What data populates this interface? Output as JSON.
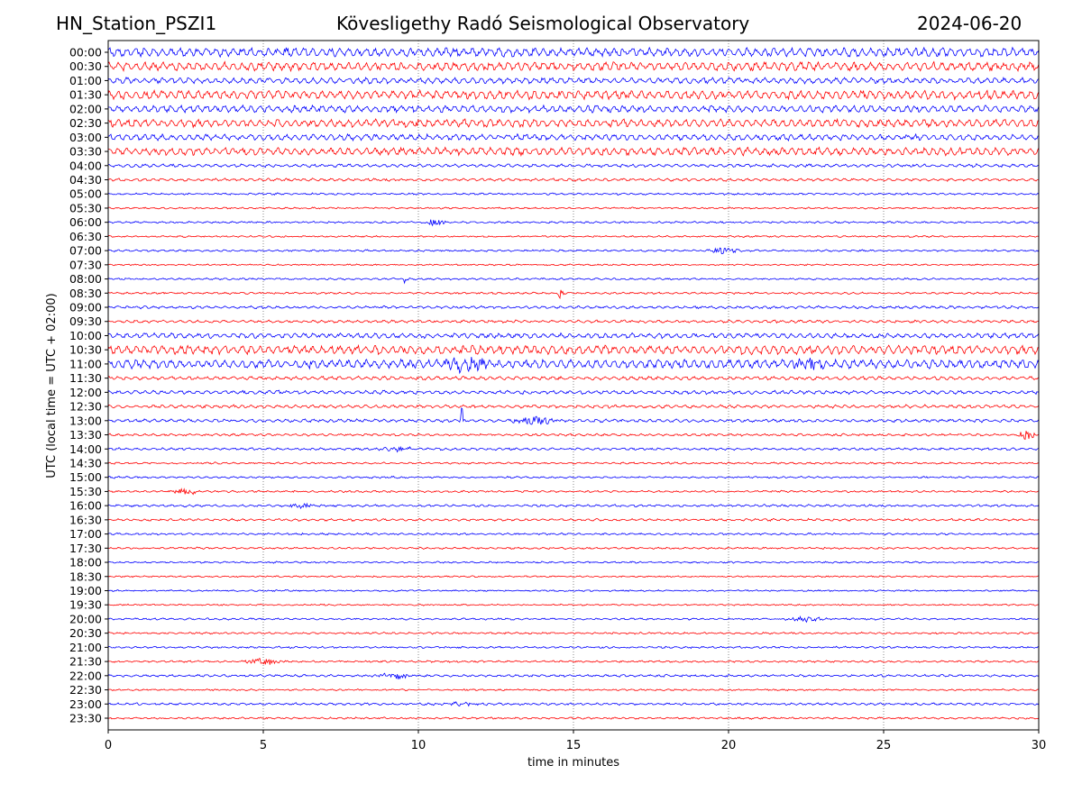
{
  "header": {
    "station": "HN_Station_PSZI1",
    "observatory": "Kövesligethy Radó Seismological Observatory",
    "date": "2024-06-20"
  },
  "chart_data": {
    "type": "line",
    "title": "Kövesligethy Radó Seismological Observatory",
    "xlabel": "time in minutes",
    "ylabel": "UTC (local time = UTC + 02:00)",
    "xlim": [
      0,
      30
    ],
    "xticks": [
      "0",
      "5",
      "10",
      "15",
      "20",
      "25",
      "30"
    ],
    "grid": "vertical dotted at x ticks",
    "colors": [
      "#0000ff",
      "#ff0000"
    ],
    "rows": [
      "00:00",
      "00:30",
      "01:00",
      "01:30",
      "02:00",
      "02:30",
      "03:00",
      "03:30",
      "04:00",
      "04:30",
      "05:00",
      "05:30",
      "06:00",
      "06:30",
      "07:00",
      "07:30",
      "08:00",
      "08:30",
      "09:00",
      "09:30",
      "10:00",
      "10:30",
      "11:00",
      "11:30",
      "12:00",
      "12:30",
      "13:00",
      "13:30",
      "14:00",
      "14:30",
      "15:00",
      "15:30",
      "16:00",
      "16:30",
      "17:00",
      "17:30",
      "18:00",
      "18:30",
      "19:00",
      "19:30",
      "20:00",
      "20:30",
      "21:00",
      "21:30",
      "22:00",
      "22:30",
      "23:00",
      "23:30"
    ],
    "noise_level": [
      0.9,
      0.9,
      0.6,
      0.9,
      0.7,
      0.8,
      0.6,
      0.8,
      0.3,
      0.25,
      0.15,
      0.12,
      0.15,
      0.12,
      0.15,
      0.1,
      0.15,
      0.15,
      0.25,
      0.25,
      0.5,
      0.9,
      0.9,
      0.35,
      0.35,
      0.3,
      0.3,
      0.2,
      0.2,
      0.15,
      0.15,
      0.15,
      0.2,
      0.2,
      0.15,
      0.15,
      0.12,
      0.1,
      0.1,
      0.1,
      0.15,
      0.15,
      0.15,
      0.15,
      0.2,
      0.12,
      0.2,
      0.15
    ],
    "events": [
      {
        "row": "06:00",
        "minute": 10.5,
        "amp": 0.5,
        "dur": 0.5
      },
      {
        "row": "07:00",
        "minute": 19.8,
        "amp": 0.5,
        "dur": 0.8
      },
      {
        "row": "08:00",
        "minute": 9.6,
        "amp": 1.0,
        "dur": 0.1
      },
      {
        "row": "08:30",
        "minute": 14.6,
        "amp": 1.0,
        "dur": 0.15
      },
      {
        "row": "11:00",
        "minute": 11.5,
        "amp": 1.0,
        "dur": 1.0
      },
      {
        "row": "11:00",
        "minute": 22.6,
        "amp": 0.8,
        "dur": 0.8
      },
      {
        "row": "13:00",
        "minute": 11.4,
        "amp": 3.0,
        "dur": 0.05
      },
      {
        "row": "13:00",
        "minute": 13.8,
        "amp": 0.6,
        "dur": 1.0
      },
      {
        "row": "13:30",
        "minute": 29.6,
        "amp": 0.8,
        "dur": 0.4
      },
      {
        "row": "14:00",
        "minute": 9.3,
        "amp": 0.4,
        "dur": 0.8
      },
      {
        "row": "15:30",
        "minute": 2.5,
        "amp": 0.4,
        "dur": 0.8
      },
      {
        "row": "16:00",
        "minute": 6.2,
        "amp": 0.5,
        "dur": 0.5
      },
      {
        "row": "20:00",
        "minute": 22.5,
        "amp": 0.35,
        "dur": 0.8
      },
      {
        "row": "21:30",
        "minute": 5.0,
        "amp": 0.6,
        "dur": 0.8
      },
      {
        "row": "22:00",
        "minute": 9.3,
        "amp": 0.5,
        "dur": 0.8
      },
      {
        "row": "23:00",
        "minute": 11.5,
        "amp": 0.3,
        "dur": 1.0
      }
    ]
  }
}
